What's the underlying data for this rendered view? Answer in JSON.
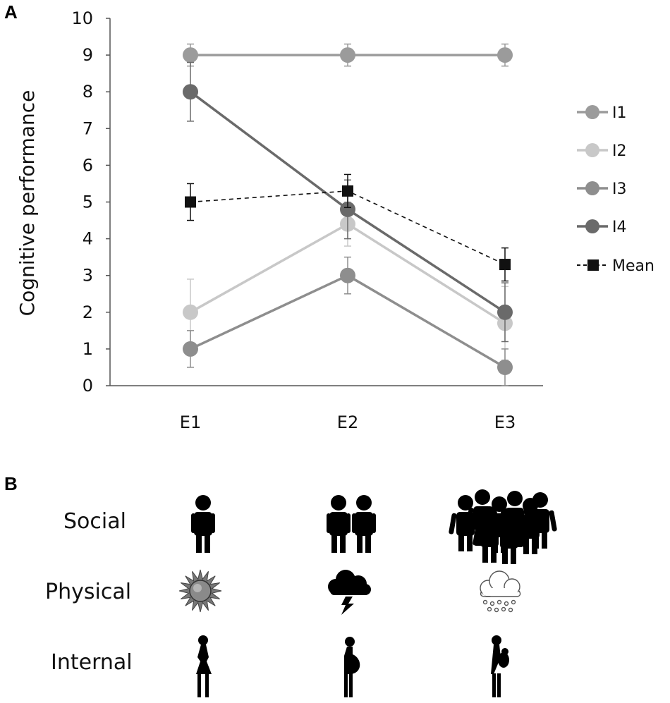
{
  "panels": {
    "a": "A",
    "b": "B"
  },
  "chart_data": {
    "type": "line",
    "title": "",
    "xlabel": "",
    "ylabel": "Cognitive performance",
    "categories": [
      "E1",
      "E2",
      "E3"
    ],
    "ylim": [
      0,
      10
    ],
    "yticks": [
      0,
      1,
      2,
      3,
      4,
      5,
      6,
      7,
      8,
      9,
      10
    ],
    "grid": false,
    "legend_position": "right",
    "series": [
      {
        "name": "I1",
        "values": [
          9,
          9,
          9
        ],
        "errors": [
          0.3,
          0.3,
          0.3
        ],
        "color": "#9b9b9b",
        "marker": "circle",
        "dashed": false
      },
      {
        "name": "I2",
        "values": [
          2,
          4.4,
          1.7
        ],
        "errors": [
          0.9,
          0.6,
          1.0
        ],
        "color": "#c8c8c8",
        "marker": "circle",
        "dashed": false
      },
      {
        "name": "I3",
        "values": [
          1,
          3,
          0.5
        ],
        "errors": [
          0.5,
          0.5,
          0.5
        ],
        "color": "#8e8e8e",
        "marker": "circle",
        "dashed": false
      },
      {
        "name": "I4",
        "values": [
          8,
          4.8,
          2
        ],
        "errors": [
          0.8,
          0.8,
          0.8
        ],
        "color": "#6a6a6a",
        "marker": "circle",
        "dashed": false
      },
      {
        "name": "Mean",
        "values": [
          5,
          5.3,
          3.3
        ],
        "errors": [
          0.5,
          0.45,
          0.45
        ],
        "color": "#111111",
        "marker": "square",
        "dashed": true
      }
    ]
  },
  "panel_b": {
    "rows": [
      {
        "label": "Social",
        "icons": [
          "single-person-icon",
          "two-people-icon",
          "crowd-icon"
        ]
      },
      {
        "label": "Physical",
        "icons": [
          "sun-icon",
          "storm-cloud-icon",
          "snow-cloud-icon"
        ]
      },
      {
        "label": "Internal",
        "icons": [
          "woman-silhouette-icon",
          "pregnant-woman-icon",
          "mother-with-baby-icon"
        ]
      }
    ]
  }
}
